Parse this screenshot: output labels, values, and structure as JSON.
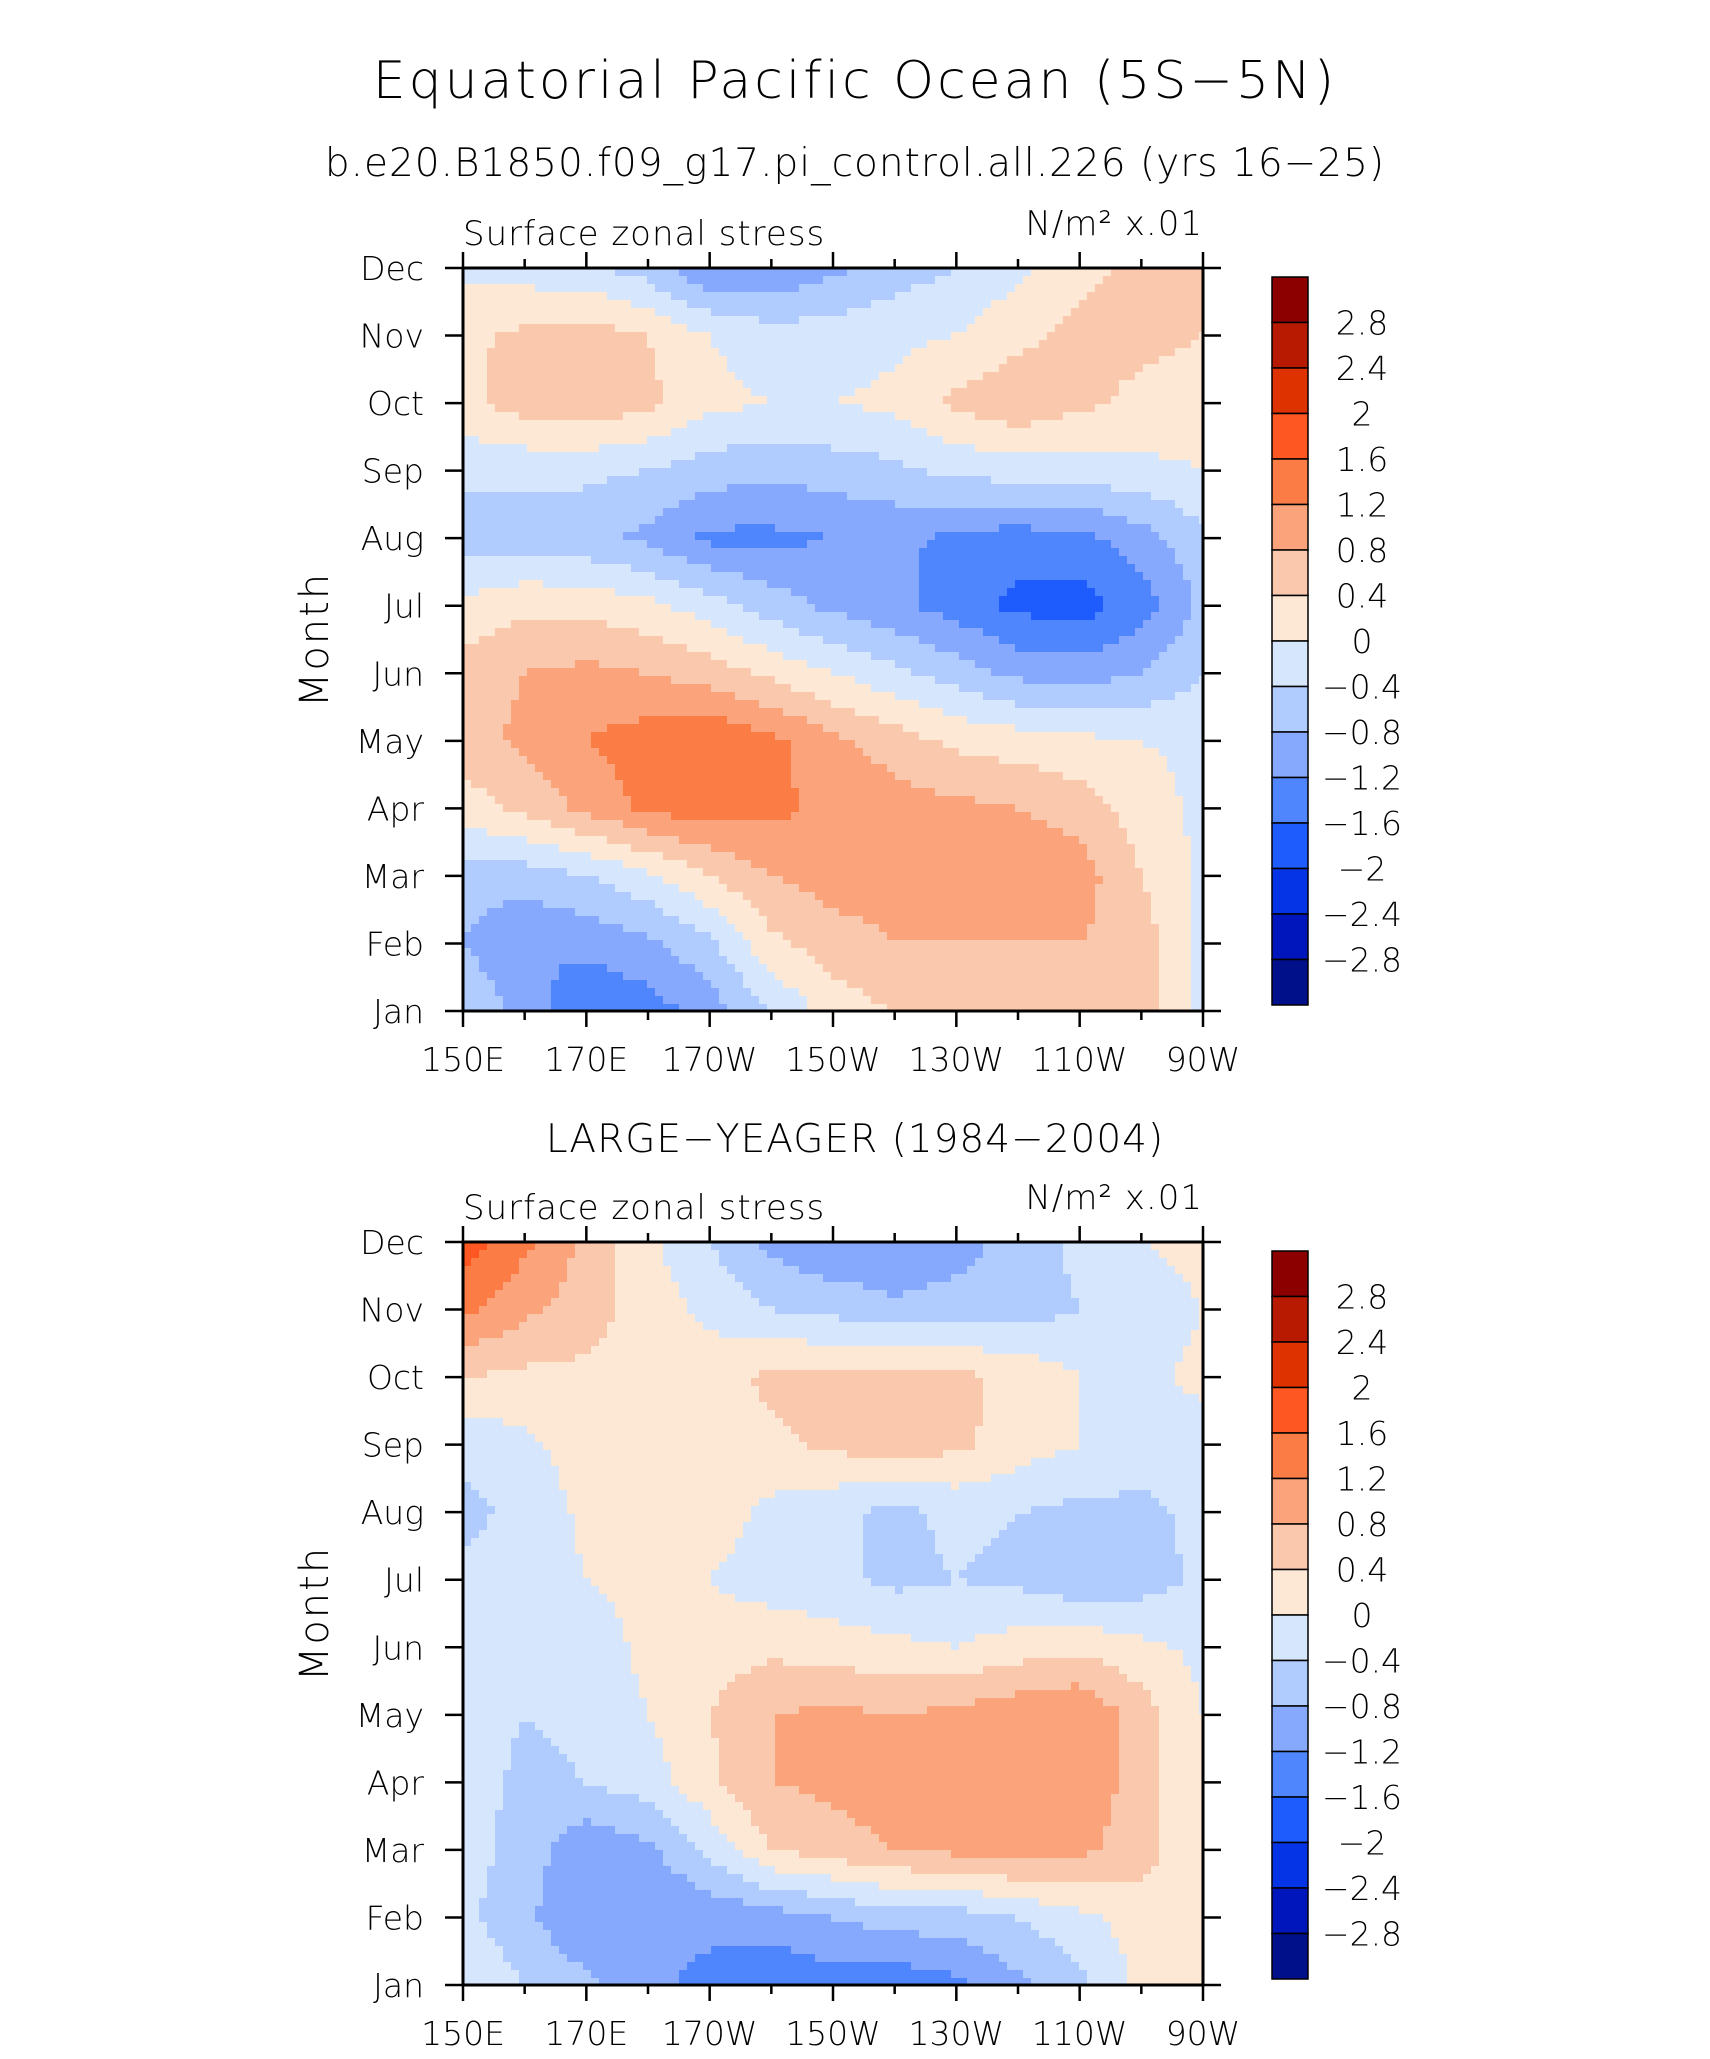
{
  "figure": {
    "title": "Equatorial Pacific Ocean (5S−5N)",
    "subtitle": "b.e20.B1850.f09_g17.pi_control.all.226 (yrs 16−25)"
  },
  "chart_data": [
    {
      "type": "heatmap",
      "panel_title": "",
      "left_annotation": "Surface zonal stress",
      "right_annotation": "N/m² x.01",
      "ylabel": "Month",
      "xlabel": "",
      "x_ticks": [
        "150E",
        "170E",
        "170W",
        "150W",
        "130W",
        "110W",
        "90W"
      ],
      "y_ticks": [
        "Jan",
        "Feb",
        "Mar",
        "Apr",
        "May",
        "Jun",
        "Jul",
        "Aug",
        "Sep",
        "Oct",
        "Nov",
        "Dec"
      ],
      "xlim": [
        150,
        270
      ],
      "ylim": [
        1,
        12
      ],
      "x_columns_lon": [
        150,
        160,
        170,
        180,
        190,
        200,
        210,
        220,
        230,
        240,
        250,
        260,
        270
      ],
      "values": [
        [
          -0.4,
          -1.0,
          -1.5,
          -1.4,
          -1.0,
          -0.4,
          0.2,
          0.4,
          0.4,
          0.5,
          0.6,
          0.6,
          -0.1
        ],
        [
          -0.8,
          -1.2,
          -1.1,
          -0.9,
          -0.5,
          0.3,
          0.6,
          0.8,
          0.8,
          0.8,
          0.8,
          0.6,
          -0.1
        ],
        [
          -0.6,
          -0.6,
          -0.4,
          -0.1,
          0.4,
          0.8,
          1.0,
          1.0,
          1.1,
          1.2,
          1.0,
          0.4,
          -0.1
        ],
        [
          0.2,
          0.5,
          0.9,
          1.3,
          1.4,
          1.3,
          1.1,
          1.0,
          0.9,
          0.8,
          0.6,
          0.2,
          -0.1
        ],
        [
          0.6,
          0.9,
          1.2,
          1.4,
          1.6,
          1.3,
          0.9,
          0.6,
          0.3,
          0.2,
          0.1,
          0.0,
          -0.1
        ],
        [
          0.6,
          0.8,
          0.9,
          0.8,
          0.6,
          0.3,
          0.0,
          -0.3,
          -0.6,
          -0.9,
          -1.0,
          -0.8,
          -0.4
        ],
        [
          0.1,
          0.3,
          0.3,
          0.1,
          -0.2,
          -0.6,
          -0.9,
          -1.1,
          -1.4,
          -1.7,
          -1.8,
          -1.4,
          -0.7
        ],
        [
          -0.6,
          -0.6,
          -0.7,
          -0.9,
          -1.3,
          -1.3,
          -1.2,
          -1.1,
          -1.3,
          -1.4,
          -1.3,
          -1.0,
          -0.5
        ],
        [
          -0.3,
          -0.3,
          -0.3,
          -0.4,
          -0.6,
          -0.7,
          -0.6,
          -0.5,
          -0.3,
          -0.2,
          -0.2,
          -0.1,
          0.0
        ],
        [
          0.3,
          0.6,
          0.7,
          0.5,
          0.1,
          0.0,
          0.0,
          0.1,
          0.5,
          0.7,
          0.5,
          0.3,
          0.2
        ],
        [
          0.3,
          0.5,
          0.6,
          0.4,
          0.0,
          -0.2,
          -0.2,
          -0.1,
          0.0,
          0.3,
          0.5,
          0.5,
          0.4
        ],
        [
          -0.1,
          -0.2,
          -0.3,
          -0.6,
          -1.2,
          -1.2,
          -0.9,
          -0.6,
          -0.4,
          -0.1,
          0.3,
          0.5,
          0.4
        ]
      ],
      "contour_levels": [
        -2.8,
        -2.4,
        -2.0,
        -1.6,
        -1.2,
        -0.8,
        -0.4,
        0,
        0.4,
        0.8,
        1.2,
        1.6,
        2.0,
        2.4,
        2.8
      ]
    },
    {
      "type": "heatmap",
      "panel_title": "LARGE−YEAGER (1984−2004)",
      "left_annotation": "Surface zonal stress",
      "right_annotation": "N/m² x.01",
      "ylabel": "Month",
      "xlabel": "",
      "x_ticks": [
        "150E",
        "170E",
        "170W",
        "150W",
        "130W",
        "110W",
        "90W"
      ],
      "y_ticks": [
        "Jan",
        "Feb",
        "Mar",
        "Apr",
        "May",
        "Jun",
        "Jul",
        "Aug",
        "Sep",
        "Oct",
        "Nov",
        "Dec"
      ],
      "xlim": [
        150,
        270
      ],
      "ylim": [
        1,
        12
      ],
      "x_columns_lon": [
        150,
        160,
        170,
        180,
        190,
        200,
        210,
        220,
        230,
        240,
        250,
        260,
        270
      ],
      "values": [
        [
          0.0,
          -0.4,
          -0.7,
          -1.1,
          -1.3,
          -1.5,
          -1.4,
          -1.5,
          -1.3,
          -0.9,
          -0.5,
          0.1,
          0.1
        ],
        [
          -0.3,
          -0.7,
          -1.2,
          -1.2,
          -1.1,
          -1.0,
          -0.8,
          -0.6,
          -0.6,
          -0.4,
          -0.1,
          0.2,
          0.1
        ],
        [
          -0.2,
          -0.6,
          -1.1,
          -0.9,
          -0.3,
          0.4,
          0.6,
          0.8,
          0.9,
          1.0,
          0.9,
          0.6,
          0.0
        ],
        [
          -0.2,
          -0.5,
          -0.4,
          -0.2,
          0.3,
          0.8,
          0.9,
          1.1,
          1.2,
          1.2,
          1.1,
          0.6,
          0.0
        ],
        [
          -0.2,
          -0.4,
          -0.3,
          0.0,
          0.4,
          0.8,
          0.9,
          0.8,
          0.9,
          1.1,
          1.2,
          0.6,
          0.0
        ],
        [
          -0.2,
          -0.3,
          -0.2,
          0.1,
          0.2,
          0.3,
          0.2,
          0.1,
          0.0,
          0.2,
          0.3,
          0.1,
          -0.1
        ],
        [
          -0.3,
          -0.3,
          0.0,
          0.1,
          0.0,
          -0.2,
          -0.3,
          -0.5,
          -0.4,
          -0.5,
          -0.7,
          -0.6,
          -0.3
        ],
        [
          -0.5,
          -0.3,
          0.1,
          0.2,
          0.2,
          -0.1,
          -0.3,
          -0.5,
          -0.3,
          -0.4,
          -0.5,
          -0.5,
          -0.3
        ],
        [
          -0.3,
          -0.1,
          0.2,
          0.2,
          0.2,
          0.3,
          0.5,
          0.6,
          0.5,
          0.2,
          0.0,
          -0.2,
          -0.2
        ],
        [
          0.4,
          0.3,
          0.3,
          0.2,
          0.2,
          0.5,
          0.5,
          0.6,
          0.5,
          0.3,
          0.0,
          -0.1,
          0.1
        ],
        [
          1.3,
          0.9,
          0.6,
          0.2,
          -0.1,
          -0.4,
          -0.5,
          -0.7,
          -0.6,
          -0.6,
          -0.4,
          -0.2,
          0.0
        ],
        [
          1.8,
          1.3,
          0.7,
          0.1,
          -0.4,
          -0.9,
          -1.2,
          -1.2,
          -1.0,
          -0.6,
          -0.3,
          0.0,
          0.1
        ]
      ],
      "contour_levels": [
        -2.8,
        -2.4,
        -2.0,
        -1.6,
        -1.2,
        -0.8,
        -0.4,
        0,
        0.4,
        0.8,
        1.2,
        1.6,
        2.0,
        2.4,
        2.8
      ]
    }
  ],
  "colorbar": {
    "labels": [
      "2.8",
      "2.4",
      "2",
      "1.6",
      "1.2",
      "0.8",
      "0.4",
      "0",
      "−0.4",
      "−0.8",
      "−1.2",
      "−1.6",
      "−2",
      "−2.4",
      "−2.8"
    ],
    "colors": [
      "#8c0000",
      "#b71a00",
      "#de3200",
      "#fe5722",
      "#fc7c46",
      "#fba47b",
      "#fac8ac",
      "#fde8d6",
      "#d5e6fd",
      "#b0cbfd",
      "#86a9fd",
      "#4f86fd",
      "#1f5cfd",
      "#0533e6",
      "#0016bd",
      "#000f8a"
    ]
  }
}
